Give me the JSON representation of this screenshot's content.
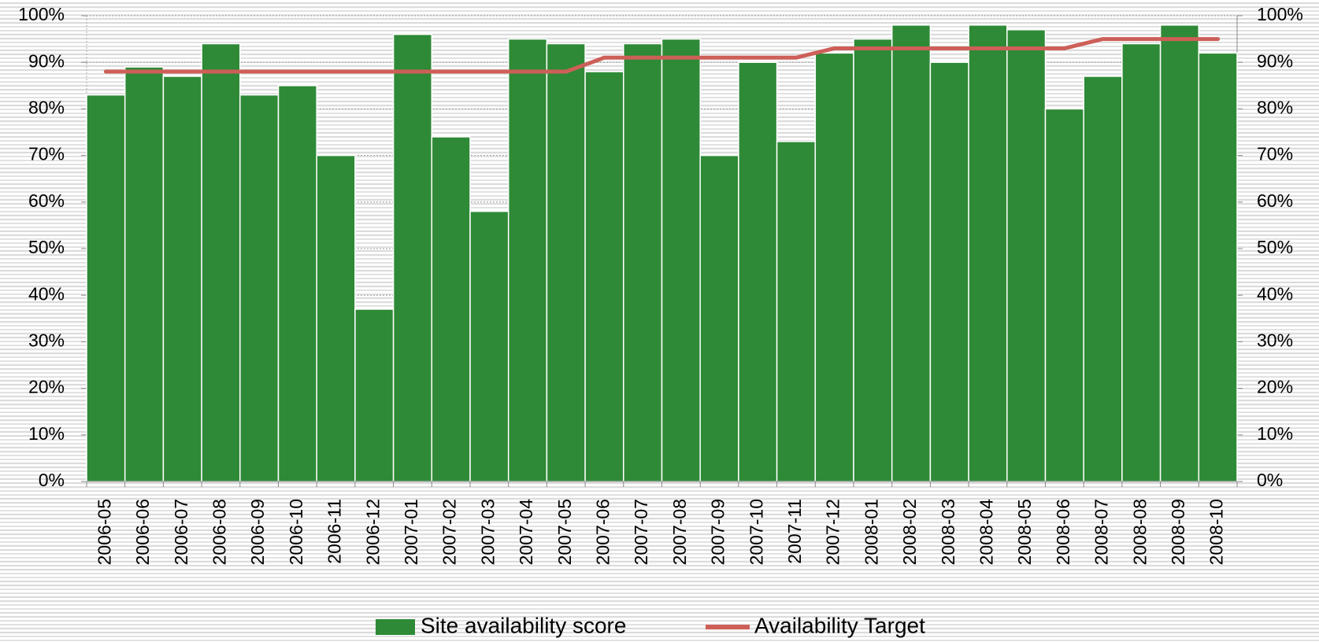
{
  "chart_data": {
    "type": "bar",
    "categories": [
      "2006-05",
      "2006-06",
      "2006-07",
      "2006-08",
      "2006-09",
      "2006-10",
      "2006-11",
      "2006-12",
      "2007-01",
      "2007-02",
      "2007-03",
      "2007-04",
      "2007-05",
      "2007-06",
      "2007-07",
      "2007-08",
      "2007-09",
      "2007-10",
      "2007-11",
      "2007-12",
      "2008-01",
      "2008-02",
      "2008-03",
      "2008-04",
      "2008-05",
      "2008-06",
      "2008-07",
      "2008-08",
      "2008-09",
      "2008-10"
    ],
    "series": [
      {
        "name": "Site availability score",
        "type": "bar",
        "color": "#2e8a36",
        "values": [
          83,
          89,
          87,
          94,
          83,
          85,
          70,
          37,
          96,
          74,
          58,
          95,
          94,
          88,
          94,
          95,
          70,
          90,
          73,
          92,
          95,
          98,
          90,
          98,
          97,
          80,
          87,
          94,
          98,
          92
        ]
      },
      {
        "name": "Availability Target",
        "type": "line",
        "color": "#cd5f58",
        "axis": "y2",
        "values": [
          88,
          88,
          88,
          88,
          88,
          88,
          88,
          88,
          88,
          88,
          88,
          88,
          88,
          91,
          91,
          91,
          91,
          91,
          91,
          93,
          93,
          93,
          93,
          93,
          93,
          93,
          95,
          95,
          95,
          95
        ]
      }
    ],
    "ylim": [
      0,
      100
    ],
    "yticks": [
      {
        "value": 0,
        "label": "0%"
      },
      {
        "value": 10,
        "label": "10%"
      },
      {
        "value": 20,
        "label": "20%"
      },
      {
        "value": 30,
        "label": "30%"
      },
      {
        "value": 40,
        "label": "40%"
      },
      {
        "value": 50,
        "label": "50%"
      },
      {
        "value": 60,
        "label": "60%"
      },
      {
        "value": 70,
        "label": "70%"
      },
      {
        "value": 80,
        "label": "80%"
      },
      {
        "value": 90,
        "label": "90%"
      },
      {
        "value": 100,
        "label": "100%"
      }
    ],
    "y2lim": [
      0,
      100
    ],
    "y2ticks": [
      {
        "value": 0,
        "label": "0%"
      },
      {
        "value": 10,
        "label": "10%"
      },
      {
        "value": 20,
        "label": "20%"
      },
      {
        "value": 30,
        "label": "30%"
      },
      {
        "value": 40,
        "label": "40%"
      },
      {
        "value": 50,
        "label": "50%"
      },
      {
        "value": 60,
        "label": "60%"
      },
      {
        "value": 70,
        "label": "70%"
      },
      {
        "value": 80,
        "label": "80%"
      },
      {
        "value": 90,
        "label": "90%"
      },
      {
        "value": 100,
        "label": "100%"
      }
    ],
    "grid": true,
    "legend": "bottom"
  }
}
